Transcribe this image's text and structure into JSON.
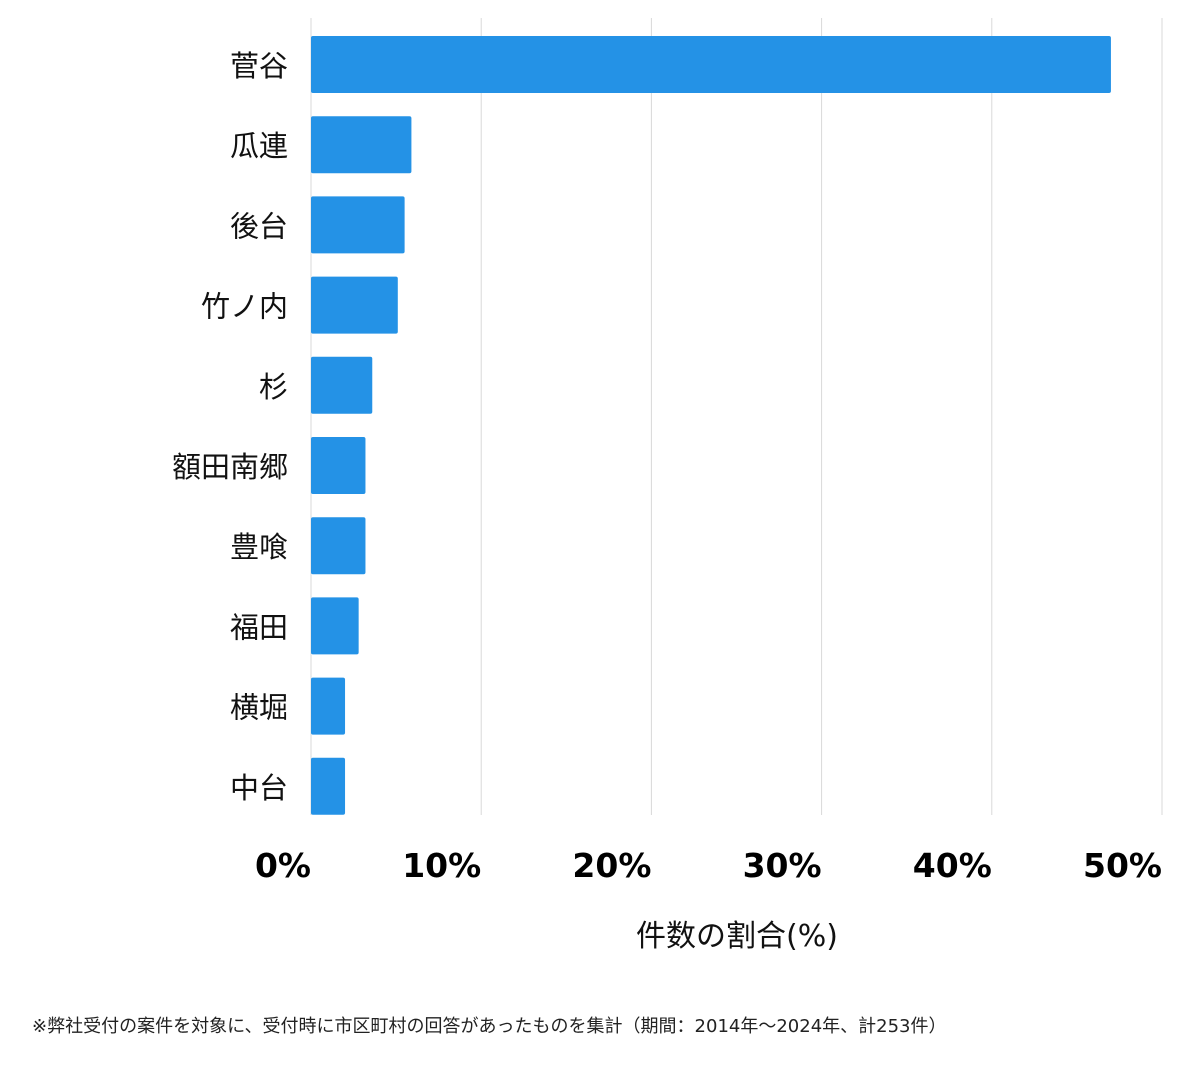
{
  "chart_data": {
    "type": "bar",
    "orientation": "horizontal",
    "categories": [
      "菅谷",
      "瓜連",
      "後台",
      "竹ノ内",
      "杉",
      "額田南郷",
      "豊喰",
      "福田",
      "横堀",
      "中台"
    ],
    "values": [
      47.0,
      5.9,
      5.5,
      5.1,
      3.6,
      3.2,
      3.2,
      2.8,
      2.0,
      2.0
    ],
    "xlabel": "件数の割合(%)",
    "ylabel": "",
    "xlim": [
      0,
      50
    ],
    "xticks": [
      "0%",
      "10%",
      "20%",
      "30%",
      "40%",
      "50%"
    ],
    "grid": true,
    "bar_color": "#2492e6",
    "grid_color": "#d9d9d9"
  },
  "footer": "※弊社受付の案件を対象に、受付時に市区町村の回答があったものを集計（期間：2014年～2024年、計253件）"
}
